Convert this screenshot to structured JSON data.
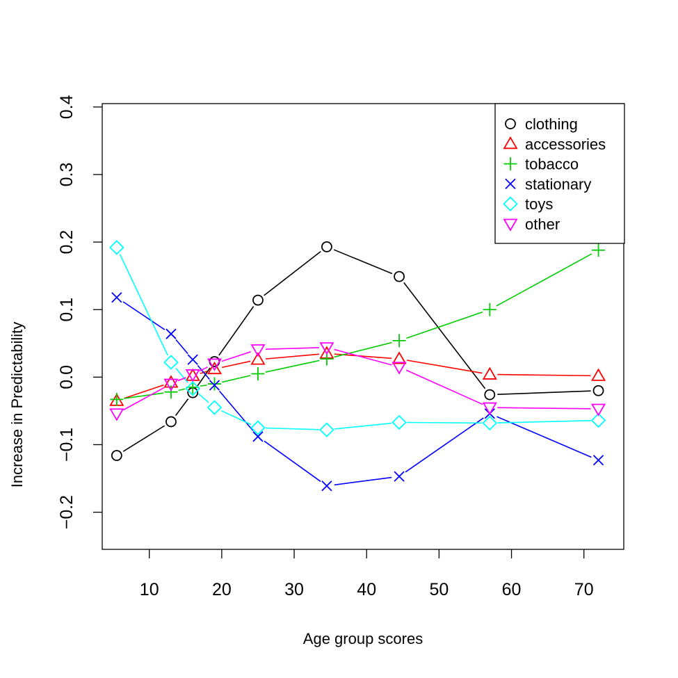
{
  "chart_data": {
    "type": "line",
    "title": "",
    "xlabel": "Age group scores",
    "ylabel": "Increase in Predictability",
    "xlim": [
      3.5,
      75.5
    ],
    "ylim": [
      -0.255,
      0.405
    ],
    "xticks": [
      "10",
      "20",
      "30",
      "40",
      "50",
      "60",
      "70"
    ],
    "yticks": [
      "−0.2",
      "−0.1",
      "0.0",
      "0.1",
      "0.2",
      "0.3",
      "0.4"
    ],
    "x": [
      5.5,
      13,
      16,
      19,
      25,
      34.5,
      44.5,
      57,
      72
    ],
    "legend_position": "top-right",
    "series": [
      {
        "name": "clothing",
        "color": "#000000",
        "marker": "circle",
        "values": [
          -0.116,
          -0.066,
          -0.023,
          0.023,
          0.114,
          0.193,
          0.149,
          -0.026,
          -0.02
        ]
      },
      {
        "name": "accessories",
        "color": "#ff0000",
        "marker": "triangle-up",
        "values": [
          -0.035,
          -0.008,
          0.002,
          0.012,
          0.026,
          0.035,
          0.027,
          0.004,
          0.002
        ]
      },
      {
        "name": "tobacco",
        "color": "#00cd00",
        "marker": "plus",
        "values": [
          -0.033,
          -0.022,
          -0.015,
          -0.01,
          0.005,
          0.027,
          0.054,
          0.1,
          0.188
        ]
      },
      {
        "name": "stationary",
        "color": "#0000ff",
        "marker": "cross",
        "values": [
          0.118,
          0.064,
          0.026,
          -0.012,
          -0.088,
          -0.161,
          -0.147,
          -0.054,
          -0.123
        ]
      },
      {
        "name": "toys",
        "color": "#00ffff",
        "marker": "diamond",
        "values": [
          0.192,
          0.022,
          -0.017,
          -0.045,
          -0.075,
          -0.078,
          -0.067,
          -0.068,
          -0.064
        ]
      },
      {
        "name": "other",
        "color": "#ff00ff",
        "marker": "triangle-down",
        "values": [
          -0.054,
          -0.01,
          0.004,
          0.02,
          0.041,
          0.044,
          0.015,
          -0.045,
          -0.047
        ]
      }
    ]
  }
}
